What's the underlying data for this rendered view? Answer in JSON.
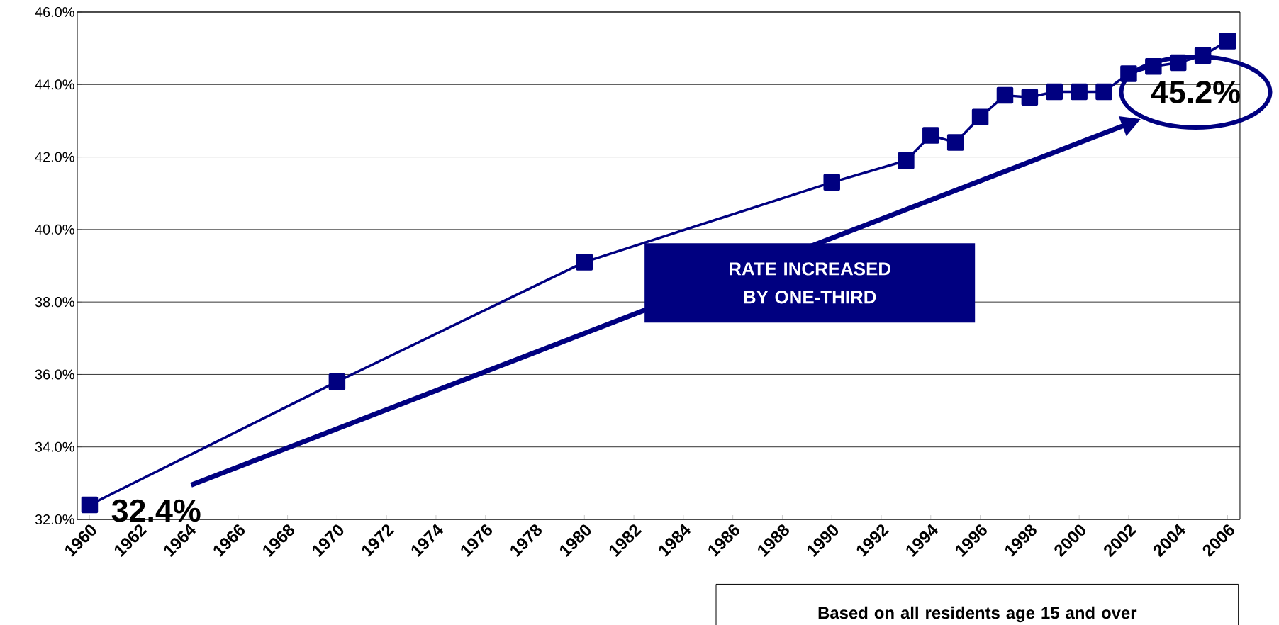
{
  "chart_data": {
    "type": "line",
    "x": [
      1960,
      1970,
      1980,
      1990,
      1993,
      1994,
      1995,
      1996,
      1997,
      1998,
      1999,
      2000,
      2001,
      2002,
      2003,
      2004,
      2005,
      2006
    ],
    "series": [
      {
        "color": "#000080",
        "values": [
          32.4,
          35.8,
          39.1,
          41.3,
          41.9,
          42.6,
          42.4,
          43.1,
          43.7,
          43.65,
          43.8,
          43.8,
          43.8,
          44.3,
          44.5,
          44.6,
          44.8,
          45.2
        ]
      }
    ],
    "xlim": [
      1959.5,
      2006.5
    ],
    "xticks": [
      1960,
      1962,
      1964,
      1966,
      1968,
      1970,
      1972,
      1974,
      1976,
      1978,
      1980,
      1982,
      1984,
      1986,
      1988,
      1990,
      1992,
      1994,
      1996,
      1998,
      2000,
      2002,
      2004,
      2006
    ],
    "ylim": [
      32,
      46
    ],
    "yticks": [
      {
        "value": 32,
        "label": "32.0%"
      },
      {
        "value": 34,
        "label": "34.0%"
      },
      {
        "value": 36,
        "label": "36.0%"
      },
      {
        "value": 38,
        "label": "38.0%"
      },
      {
        "value": 40,
        "label": "40.0%"
      },
      {
        "value": 42,
        "label": "42.0%"
      },
      {
        "value": 44,
        "label": "44.0%"
      },
      {
        "value": 46,
        "label": "46.0%"
      }
    ],
    "grid": "y",
    "marker": "square",
    "line_style": "solid",
    "annotations": [
      {
        "text": "32.4%",
        "x": 1960,
        "y": 32.4
      },
      {
        "text": "45.2%",
        "x": 2006,
        "y": 45.2
      },
      "RATE INCREASED BY ONE-THIRD",
      "Based on all residents age 15 and over"
    ]
  }
}
